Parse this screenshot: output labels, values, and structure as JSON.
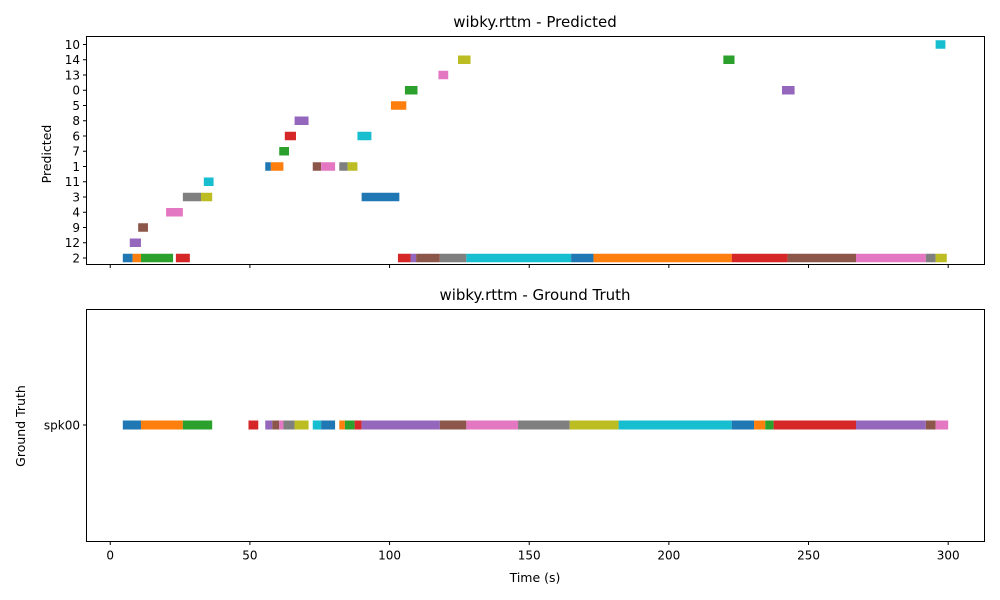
{
  "colors": [
    "#1f77b4",
    "#ff7f0e",
    "#2ca02c",
    "#d62728",
    "#9467bd",
    "#8c564b",
    "#e377c2",
    "#7f7f7f",
    "#bcbd22",
    "#17becf"
  ],
  "chart_data": [
    {
      "type": "timeline",
      "title": "wibky.rttm - Predicted",
      "xlabel": "",
      "ylabel": "Predicted",
      "xlim": [
        -8.5,
        313
      ],
      "x_ticks": [
        0,
        50,
        100,
        150,
        200,
        250,
        300
      ],
      "show_x_tick_labels": false,
      "categories": [
        "2",
        "12",
        "9",
        "4",
        "3",
        "11",
        "1",
        "7",
        "6",
        "8",
        "5",
        "0",
        "13",
        "14",
        "10"
      ],
      "segments": [
        {
          "speaker": "2",
          "start": 4.5,
          "end": 8.0
        },
        {
          "speaker": "2",
          "start": 8.0,
          "end": 11.0
        },
        {
          "speaker": "2",
          "start": 11.0,
          "end": 22.5
        },
        {
          "speaker": "2",
          "start": 23.5,
          "end": 28.5
        },
        {
          "speaker": "12",
          "start": 7.0,
          "end": 11.0
        },
        {
          "speaker": "9",
          "start": 10.0,
          "end": 13.5
        },
        {
          "speaker": "4",
          "start": 20.0,
          "end": 26.0
        },
        {
          "speaker": "3",
          "start": 26.0,
          "end": 32.5
        },
        {
          "speaker": "3",
          "start": 32.5,
          "end": 36.5
        },
        {
          "speaker": "11",
          "start": 33.5,
          "end": 37.0
        },
        {
          "speaker": "1",
          "start": 55.5,
          "end": 57.5
        },
        {
          "speaker": "1",
          "start": 57.5,
          "end": 62.0
        },
        {
          "speaker": "7",
          "start": 60.5,
          "end": 64.0
        },
        {
          "speaker": "6",
          "start": 62.5,
          "end": 66.5
        },
        {
          "speaker": "8",
          "start": 66.0,
          "end": 71.0
        },
        {
          "speaker": "1",
          "start": 72.5,
          "end": 75.5
        },
        {
          "speaker": "1",
          "start": 75.5,
          "end": 80.5
        },
        {
          "speaker": "1",
          "start": 82.0,
          "end": 85.0
        },
        {
          "speaker": "1",
          "start": 85.0,
          "end": 88.5
        },
        {
          "speaker": "6",
          "start": 88.5,
          "end": 93.5
        },
        {
          "speaker": "3",
          "start": 90.0,
          "end": 103.5
        },
        {
          "speaker": "5",
          "start": 100.5,
          "end": 106.0
        },
        {
          "speaker": "0",
          "start": 105.5,
          "end": 110.0
        },
        {
          "speaker": "2",
          "start": 103.0,
          "end": 107.5
        },
        {
          "speaker": "2",
          "start": 107.5,
          "end": 109.5
        },
        {
          "speaker": "2",
          "start": 109.5,
          "end": 118.0
        },
        {
          "speaker": "13",
          "start": 117.5,
          "end": 121.0
        },
        {
          "speaker": "2",
          "start": 118.0,
          "end": 127.5
        },
        {
          "speaker": "14",
          "start": 124.5,
          "end": 129.0
        },
        {
          "speaker": "2",
          "start": 127.5,
          "end": 165.0
        },
        {
          "speaker": "2",
          "start": 165.0,
          "end": 173.0
        },
        {
          "speaker": "2",
          "start": 173.0,
          "end": 222.5
        },
        {
          "speaker": "14",
          "start": 219.5,
          "end": 223.5
        },
        {
          "speaker": "2",
          "start": 222.5,
          "end": 242.5
        },
        {
          "speaker": "0",
          "start": 240.5,
          "end": 245.0
        },
        {
          "speaker": "2",
          "start": 242.5,
          "end": 267.0
        },
        {
          "speaker": "2",
          "start": 267.0,
          "end": 292.0
        },
        {
          "speaker": "2",
          "start": 292.0,
          "end": 295.5
        },
        {
          "speaker": "2",
          "start": 295.5,
          "end": 299.5
        },
        {
          "speaker": "10",
          "start": 295.5,
          "end": 299.0
        }
      ]
    },
    {
      "type": "timeline",
      "title": "wibky.rttm - Ground Truth",
      "xlabel": "Time (s)",
      "ylabel": "Ground Truth",
      "xlim": [
        -8.5,
        313
      ],
      "x_ticks": [
        0,
        50,
        100,
        150,
        200,
        250,
        300
      ],
      "show_x_tick_labels": true,
      "categories": [
        "spk00"
      ],
      "segments": [
        {
          "speaker": "spk00",
          "start": 4.5,
          "end": 11.0
        },
        {
          "speaker": "spk00",
          "start": 11.0,
          "end": 26.0
        },
        {
          "speaker": "spk00",
          "start": 26.0,
          "end": 36.5
        },
        {
          "speaker": "spk00",
          "start": 49.5,
          "end": 53.0
        },
        {
          "speaker": "spk00",
          "start": 55.5,
          "end": 58.0
        },
        {
          "speaker": "spk00",
          "start": 58.0,
          "end": 60.5
        },
        {
          "speaker": "spk00",
          "start": 60.5,
          "end": 62.0
        },
        {
          "speaker": "spk00",
          "start": 62.0,
          "end": 66.0
        },
        {
          "speaker": "spk00",
          "start": 66.0,
          "end": 71.0
        },
        {
          "speaker": "spk00",
          "start": 72.5,
          "end": 75.5
        },
        {
          "speaker": "spk00",
          "start": 75.5,
          "end": 80.5
        },
        {
          "speaker": "spk00",
          "start": 82.0,
          "end": 84.0
        },
        {
          "speaker": "spk00",
          "start": 84.0,
          "end": 87.5
        },
        {
          "speaker": "spk00",
          "start": 87.5,
          "end": 90.0
        },
        {
          "speaker": "spk00",
          "start": 90.0,
          "end": 118.0
        },
        {
          "speaker": "spk00",
          "start": 118.0,
          "end": 127.5
        },
        {
          "speaker": "spk00",
          "start": 127.5,
          "end": 146.0
        },
        {
          "speaker": "spk00",
          "start": 146.0,
          "end": 164.5
        },
        {
          "speaker": "spk00",
          "start": 164.5,
          "end": 182.0
        },
        {
          "speaker": "spk00",
          "start": 182.0,
          "end": 222.5
        },
        {
          "speaker": "spk00",
          "start": 222.5,
          "end": 230.5
        },
        {
          "speaker": "spk00",
          "start": 230.5,
          "end": 234.5
        },
        {
          "speaker": "spk00",
          "start": 234.5,
          "end": 237.5
        },
        {
          "speaker": "spk00",
          "start": 237.5,
          "end": 267.0
        },
        {
          "speaker": "spk00",
          "start": 267.0,
          "end": 292.0
        },
        {
          "speaker": "spk00",
          "start": 292.0,
          "end": 295.5
        },
        {
          "speaker": "spk00",
          "start": 295.5,
          "end": 300.0
        }
      ]
    }
  ]
}
